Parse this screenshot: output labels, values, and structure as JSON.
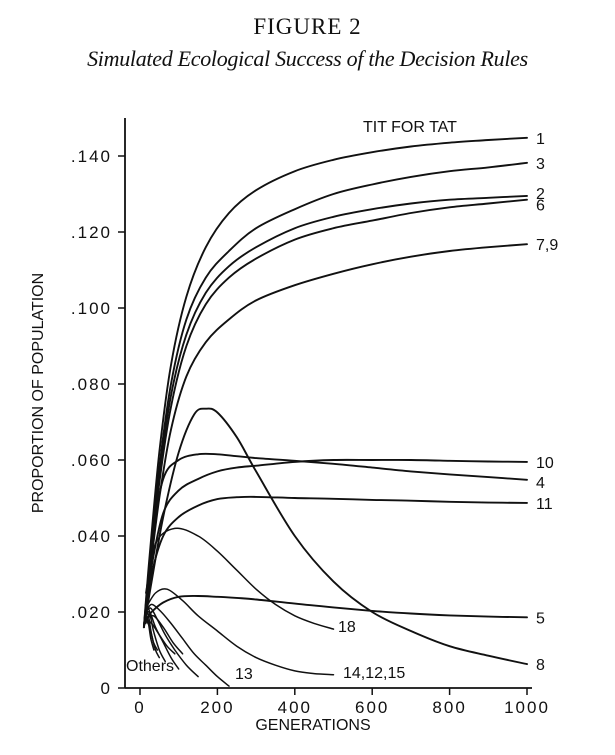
{
  "figure_label": "FIGURE 2",
  "chart_data": {
    "type": "line",
    "title": "Simulated Ecological Success of the Decision Rules",
    "xlabel": "GENERATIONS",
    "ylabel": "PROPORTION OF POPULATION",
    "xlim": [
      0,
      1000
    ],
    "ylim": [
      0,
      0.15
    ],
    "x_ticks": [
      0,
      200,
      400,
      600,
      800,
      1000
    ],
    "x_tick_labels": [
      "0",
      "200",
      "400",
      "600",
      "800",
      "1000"
    ],
    "y_ticks": [
      0,
      0.02,
      0.04,
      0.06,
      0.08,
      0.1,
      0.12,
      0.14
    ],
    "y_tick_labels": [
      "0",
      ".020",
      ".040",
      ".060",
      ".080",
      ".100",
      ".120",
      ".140"
    ],
    "grid": false,
    "annotations": [
      {
        "text": "TIT FOR TAT",
        "x": 510,
        "y": 0.146
      },
      {
        "text": "Others",
        "x": 40,
        "y": 0.005
      },
      {
        "text": "13",
        "x": 225,
        "y": 0.002
      },
      {
        "text": "18",
        "x": 505,
        "y": 0.0145
      },
      {
        "text": "14,12,15",
        "x": 505,
        "y": 0.002
      }
    ],
    "series": [
      {
        "label": "1",
        "x": [
          10,
          25,
          50,
          80,
          120,
          170,
          230,
          300,
          400,
          500,
          600,
          700,
          800,
          900,
          1000
        ],
        "y": [
          0.016,
          0.035,
          0.062,
          0.085,
          0.103,
          0.116,
          0.125,
          0.131,
          0.136,
          0.139,
          0.141,
          0.1425,
          0.1435,
          0.1442,
          0.1448
        ]
      },
      {
        "label": "3",
        "x": [
          10,
          25,
          50,
          80,
          120,
          170,
          230,
          300,
          400,
          500,
          600,
          700,
          800,
          900,
          1000
        ],
        "y": [
          0.016,
          0.033,
          0.058,
          0.08,
          0.097,
          0.108,
          0.115,
          0.121,
          0.126,
          0.13,
          0.1325,
          0.1345,
          0.136,
          0.137,
          0.1382
        ]
      },
      {
        "label": "2",
        "x": [
          10,
          25,
          50,
          80,
          120,
          170,
          230,
          300,
          400,
          500,
          600,
          700,
          800,
          900,
          1000
        ],
        "y": [
          0.016,
          0.032,
          0.056,
          0.077,
          0.093,
          0.104,
          0.111,
          0.116,
          0.121,
          0.124,
          0.126,
          0.1275,
          0.1285,
          0.129,
          0.1295
        ]
      },
      {
        "label": "6",
        "x": [
          10,
          25,
          50,
          80,
          120,
          170,
          230,
          300,
          400,
          500,
          600,
          700,
          800,
          900,
          1000
        ],
        "y": [
          0.016,
          0.031,
          0.054,
          0.074,
          0.09,
          0.101,
          0.108,
          0.113,
          0.118,
          0.121,
          0.123,
          0.125,
          0.1265,
          0.1275,
          0.1285
        ]
      },
      {
        "label": "7,9",
        "x": [
          10,
          25,
          50,
          80,
          120,
          170,
          230,
          300,
          400,
          500,
          600,
          700,
          800,
          900,
          1000
        ],
        "y": [
          0.016,
          0.03,
          0.05,
          0.068,
          0.082,
          0.091,
          0.097,
          0.102,
          0.106,
          0.109,
          0.1115,
          0.1135,
          0.115,
          0.116,
          0.1168
        ]
      },
      {
        "label": "10",
        "x": [
          15,
          30,
          60,
          100,
          150,
          200,
          250,
          300,
          400,
          500,
          600,
          700,
          800,
          900,
          1000
        ],
        "y": [
          0.02,
          0.032,
          0.046,
          0.052,
          0.055,
          0.057,
          0.058,
          0.0585,
          0.0595,
          0.06,
          0.06,
          0.06,
          0.0598,
          0.0596,
          0.0595
        ]
      },
      {
        "label": "4",
        "x": [
          15,
          30,
          60,
          100,
          150,
          200,
          250,
          300,
          400,
          500,
          600,
          700,
          800,
          900,
          1000
        ],
        "y": [
          0.02,
          0.038,
          0.055,
          0.06,
          0.0615,
          0.0615,
          0.061,
          0.0605,
          0.0598,
          0.059,
          0.058,
          0.057,
          0.0562,
          0.0555,
          0.0548
        ]
      },
      {
        "label": "11",
        "x": [
          15,
          30,
          60,
          100,
          150,
          200,
          250,
          300,
          400,
          500,
          600,
          700,
          800,
          900,
          1000
        ],
        "y": [
          0.02,
          0.03,
          0.04,
          0.045,
          0.048,
          0.0497,
          0.0502,
          0.0503,
          0.05,
          0.0498,
          0.0495,
          0.0493,
          0.049,
          0.0488,
          0.0487
        ]
      },
      {
        "label": "8",
        "x": [
          10,
          30,
          60,
          100,
          140,
          170,
          200,
          250,
          300,
          400,
          500,
          600,
          700,
          800,
          900,
          1000
        ],
        "y": [
          0.016,
          0.028,
          0.045,
          0.062,
          0.072,
          0.0735,
          0.0725,
          0.066,
          0.057,
          0.04,
          0.028,
          0.02,
          0.015,
          0.011,
          0.0085,
          0.0063
        ]
      },
      {
        "label": "5",
        "x": [
          15,
          30,
          60,
          100,
          150,
          200,
          250,
          300,
          400,
          500,
          600,
          700,
          800,
          900,
          1000
        ],
        "y": [
          0.018,
          0.02,
          0.0225,
          0.024,
          0.0242,
          0.024,
          0.0237,
          0.0233,
          0.0222,
          0.0212,
          0.0203,
          0.0196,
          0.0191,
          0.0188,
          0.0186
        ]
      }
    ],
    "unlabeled_series": [
      {
        "x": [
          15,
          40,
          90,
          150,
          200,
          250,
          300,
          350,
          400,
          450,
          500
        ],
        "y": [
          0.025,
          0.038,
          0.042,
          0.04,
          0.036,
          0.031,
          0.026,
          0.022,
          0.019,
          0.017,
          0.0155
        ]
      },
      {
        "x": [
          15,
          40,
          70,
          110,
          150,
          200,
          250,
          300,
          350,
          400,
          450,
          500
        ],
        "y": [
          0.021,
          0.025,
          0.026,
          0.023,
          0.019,
          0.015,
          0.011,
          0.008,
          0.006,
          0.0045,
          0.0038,
          0.0035
        ]
      },
      {
        "x": [
          15,
          30,
          55,
          80,
          110,
          140,
          170,
          200,
          230
        ],
        "y": [
          0.02,
          0.022,
          0.02,
          0.017,
          0.013,
          0.009,
          0.006,
          0.003,
          0.0005
        ]
      },
      {
        "x": [
          15,
          28,
          45,
          65,
          90,
          120,
          150
        ],
        "y": [
          0.02,
          0.021,
          0.018,
          0.014,
          0.01,
          0.006,
          0.003
        ]
      },
      {
        "x": [
          15,
          25,
          40,
          60,
          80,
          100
        ],
        "y": [
          0.019,
          0.02,
          0.016,
          0.012,
          0.008,
          0.005
        ]
      },
      {
        "x": [
          15,
          22,
          35,
          50,
          65
        ],
        "y": [
          0.019,
          0.021,
          0.015,
          0.01,
          0.007
        ]
      },
      {
        "x": [
          15,
          20,
          30,
          40,
          50
        ],
        "y": [
          0.018,
          0.02,
          0.014,
          0.01,
          0.008
        ]
      },
      {
        "x": [
          15,
          25,
          35,
          45
        ],
        "y": [
          0.018,
          0.016,
          0.012,
          0.01
        ]
      },
      {
        "x": [
          15,
          20,
          28,
          36
        ],
        "y": [
          0.017,
          0.018,
          0.013,
          0.01
        ]
      },
      {
        "x": [
          15,
          30,
          50,
          70,
          90
        ],
        "y": [
          0.018,
          0.017,
          0.014,
          0.011,
          0.009
        ]
      },
      {
        "x": [
          15,
          35,
          60,
          85,
          110
        ],
        "y": [
          0.018,
          0.019,
          0.016,
          0.012,
          0.009
        ]
      }
    ]
  }
}
